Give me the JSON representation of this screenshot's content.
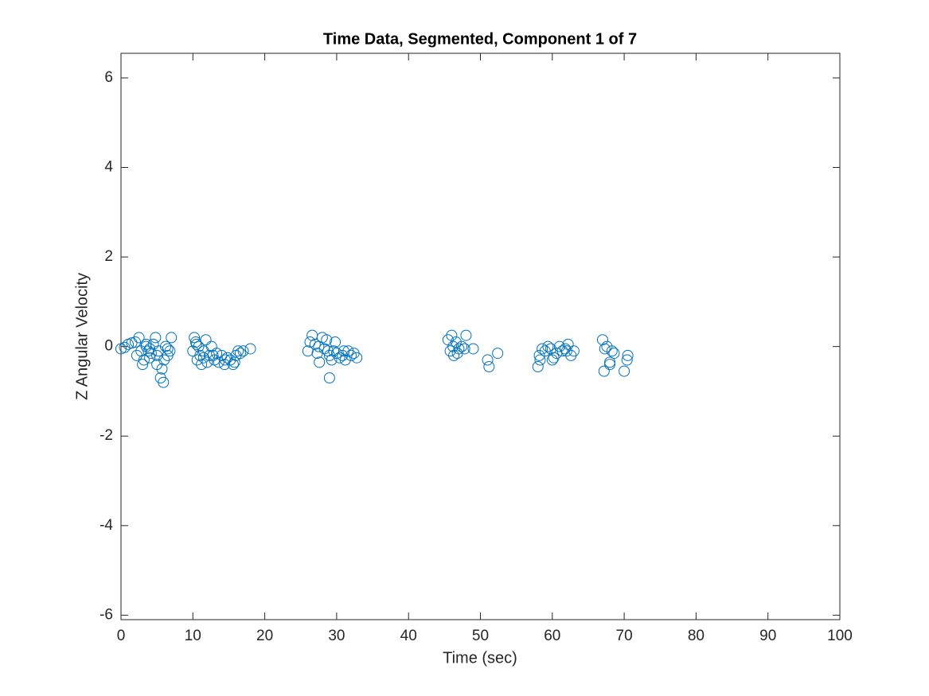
{
  "chart_data": {
    "type": "scatter",
    "title": "Time Data, Segmented, Component 1 of 7",
    "x_label": "Time (sec)",
    "y_label": "Z Angular Velocity",
    "color": "#0072bd",
    "xlim": [
      0,
      100
    ],
    "ylim": [
      -6.1,
      6.55
    ],
    "xticks": [
      0,
      10,
      20,
      30,
      40,
      50,
      60,
      70,
      80,
      90,
      100
    ],
    "yticks": [
      -6,
      -4,
      -2,
      0,
      2,
      4,
      6
    ],
    "grid": false,
    "x": [
      0,
      0.5,
      1,
      1.5,
      2,
      2.2,
      2.5,
      2.8,
      3,
      3.2,
      3.5,
      3.8,
      4,
      4.2,
      4.5,
      4.8,
      5,
      5.2,
      5.5,
      5.7,
      5.9,
      6,
      6.2,
      6.5,
      6.8,
      7,
      3.5,
      4,
      5,
      6.5,
      10,
      10.2,
      10.4,
      10.6,
      10.8,
      11,
      11.2,
      11.5,
      11.8,
      12,
      12.3,
      12.6,
      13,
      13.3,
      13.6,
      14,
      14.4,
      14.8,
      15.2,
      15.6,
      16,
      16.3,
      16.6,
      17,
      18,
      10.5,
      11.5,
      12.8,
      14.5,
      15.8,
      26,
      26.3,
      26.6,
      27,
      27.3,
      27.6,
      28,
      28.3,
      28.6,
      29,
      29.3,
      29.6,
      30,
      30.4,
      30.8,
      31.2,
      31.6,
      32,
      32.4,
      32.8,
      27.5,
      28.8,
      29,
      29.8,
      31,
      45.5,
      45.8,
      46,
      46.3,
      46.6,
      47,
      47.4,
      47.8,
      48,
      49,
      51,
      51.2,
      52.4,
      46.2,
      46.8,
      58,
      58.3,
      58.6,
      59,
      59.4,
      59.8,
      60.2,
      60.6,
      61,
      61.4,
      61.8,
      62.2,
      62.6,
      63,
      58.2,
      60,
      62,
      67,
      67.3,
      67.6,
      68,
      68.3,
      68.6,
      67.2,
      68,
      70,
      70.5,
      70.4
    ],
    "values": [
      -0.05,
      -0.02,
      0.05,
      0.08,
      0.1,
      -0.2,
      0.2,
      -0.1,
      -0.4,
      -0.3,
      0,
      -0.1,
      -0.05,
      -0.15,
      0.05,
      0.2,
      -0.2,
      -0.1,
      -0.7,
      -0.5,
      -0.8,
      -0.3,
      0,
      -0.05,
      -0.1,
      0.2,
      0.05,
      -0.25,
      -0.4,
      -0.2,
      -0.1,
      0.2,
      0.1,
      -0.3,
      0,
      -0.2,
      -0.4,
      -0.1,
      0.15,
      -0.35,
      -0.2,
      0,
      -0.3,
      -0.15,
      -0.35,
      -0.2,
      -0.4,
      -0.25,
      -0.3,
      -0.4,
      -0.2,
      -0.1,
      -0.15,
      -0.1,
      -0.05,
      0.05,
      -0.25,
      -0.2,
      -0.3,
      -0.35,
      -0.1,
      0.1,
      0.25,
      0.05,
      -0.15,
      -0.35,
      0.2,
      -0.05,
      0.15,
      -0.2,
      -0.3,
      -0.1,
      -0.15,
      -0.25,
      -0.2,
      -0.3,
      -0.1,
      -0.2,
      -0.15,
      -0.25,
      0,
      -0.1,
      -0.7,
      0.1,
      -0.1,
      0.15,
      -0.1,
      0.25,
      -0.2,
      0.1,
      -0.05,
      0,
      -0.05,
      0.25,
      -0.05,
      -0.3,
      -0.45,
      -0.15,
      0,
      -0.15,
      -0.45,
      -0.3,
      -0.05,
      -0.1,
      0,
      -0.05,
      -0.25,
      -0.15,
      0,
      -0.1,
      -0.05,
      0.05,
      -0.2,
      -0.1,
      -0.2,
      -0.3,
      -0.1,
      0.15,
      -0.05,
      0,
      -0.4,
      -0.1,
      -0.15,
      -0.55,
      -0.35,
      -0.55,
      -0.2,
      -0.3
    ]
  }
}
